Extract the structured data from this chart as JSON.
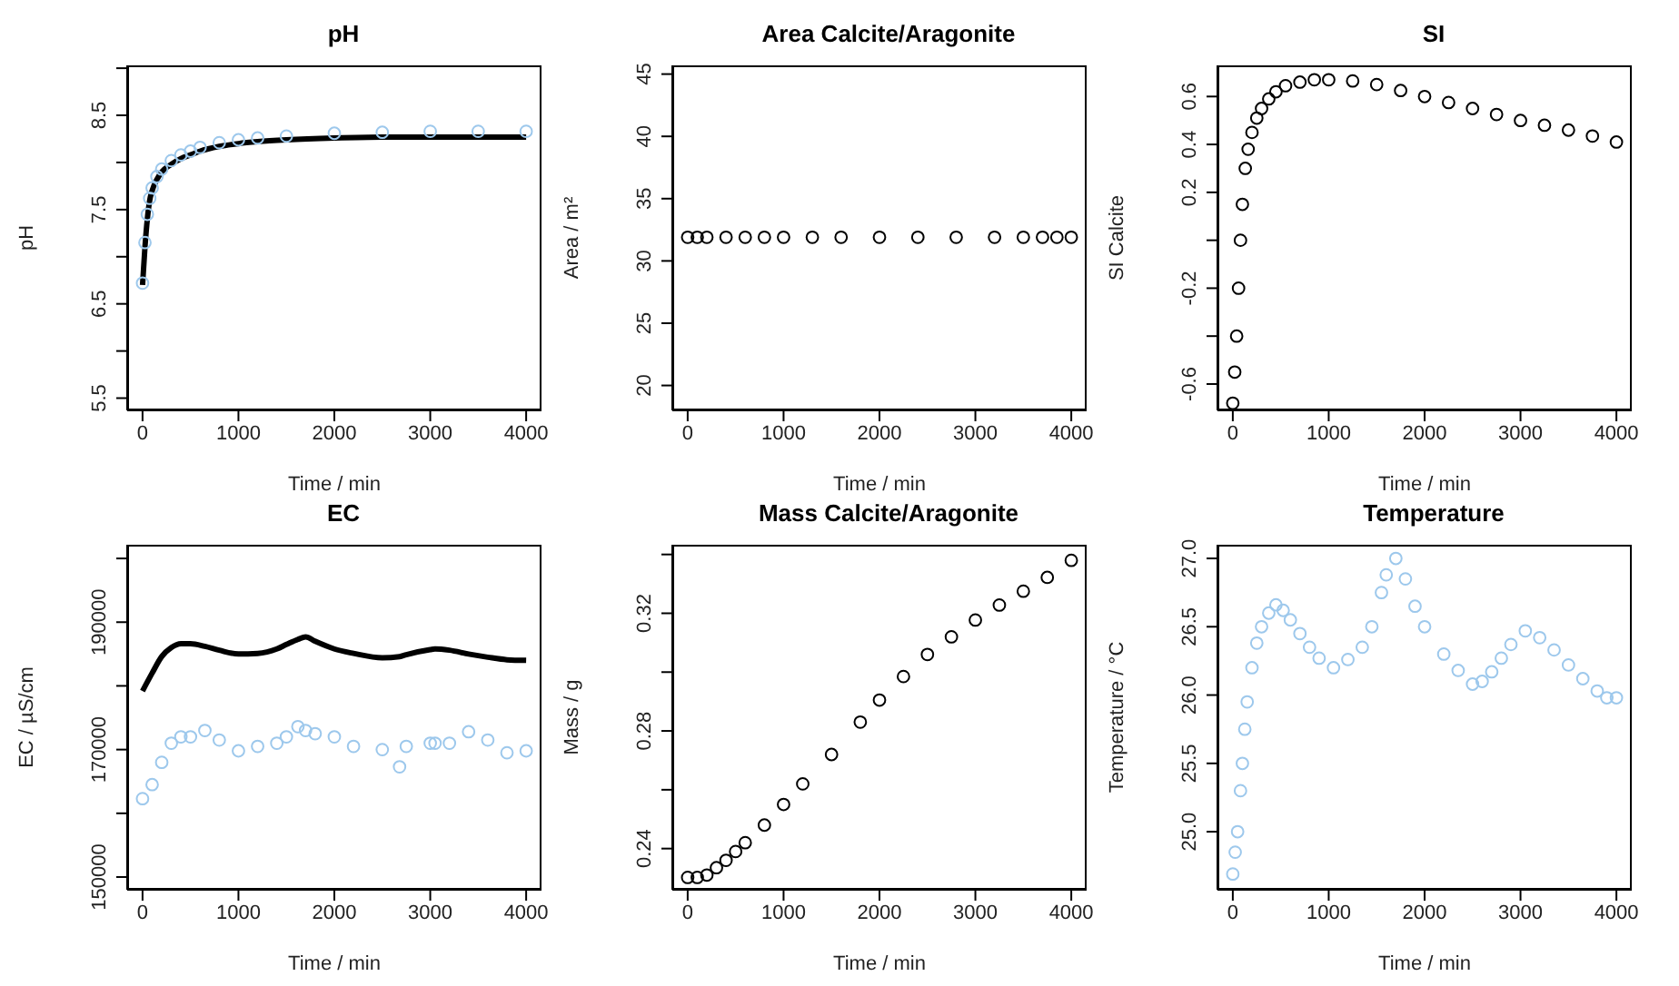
{
  "chart_data": [
    {
      "type": "scatter",
      "title": "pH",
      "xlabel": "Time / min",
      "ylabel": "pH",
      "xlim": [
        -160,
        4160
      ],
      "xticks": [
        0,
        1000,
        2000,
        3000,
        4000
      ],
      "ylim": [
        5.37,
        9.03
      ],
      "yticks": [
        5.5,
        {
          "value": 6,
          "label": null
        },
        6.5,
        {
          "value": 7,
          "label": null
        },
        7.5,
        {
          "value": 8,
          "label": null
        },
        8.5,
        {
          "value": 9,
          "label": null
        }
      ],
      "x": [
        0,
        25,
        50,
        75,
        100,
        150,
        200,
        300,
        400,
        500,
        600,
        800,
        1000,
        1200,
        1500,
        2000,
        2500,
        3000,
        3500,
        4000
      ],
      "series": [
        {
          "type": "scatter",
          "marker": "circle",
          "color": "#9dc8ec",
          "values": [
            6.72,
            7.15,
            7.45,
            7.62,
            7.73,
            7.85,
            7.93,
            8.02,
            8.08,
            8.12,
            8.16,
            8.21,
            8.24,
            8.26,
            8.28,
            8.31,
            8.32,
            8.33,
            8.33,
            8.33
          ]
        },
        {
          "type": "line",
          "line_style": "solid",
          "color": "#000000",
          "values": [
            6.7,
            7.1,
            7.4,
            7.6,
            7.7,
            7.82,
            7.9,
            7.98,
            8.04,
            8.08,
            8.12,
            8.17,
            8.2,
            8.22,
            8.24,
            8.26,
            8.27,
            8.27,
            8.27,
            8.27
          ]
        }
      ]
    },
    {
      "type": "scatter",
      "title": "Area Calcite/Aragonite",
      "xlabel": "Time / min",
      "ylabel": "Area / m²",
      "xlim": [
        -160,
        4160
      ],
      "xticks": [
        0,
        1000,
        2000,
        3000,
        4000
      ],
      "ylim": [
        18,
        45.7
      ],
      "yticks": [
        20,
        25,
        30,
        35,
        40,
        45
      ],
      "x": [
        0,
        100,
        200,
        400,
        600,
        800,
        1000,
        1300,
        1600,
        2000,
        2400,
        2800,
        3200,
        3500,
        3700,
        3850,
        4000
      ],
      "series": [
        {
          "type": "scatter",
          "marker": "circle",
          "color": "#000000",
          "values": [
            31.9,
            31.9,
            31.9,
            31.9,
            31.9,
            31.9,
            31.9,
            31.9,
            31.9,
            31.9,
            31.9,
            31.9,
            31.9,
            31.9,
            31.9,
            31.9,
            31.9
          ]
        }
      ]
    },
    {
      "type": "scatter",
      "title": "SI",
      "xlabel": "Time / min",
      "ylabel": "SI Calcite",
      "xlim": [
        -160,
        4160
      ],
      "xticks": [
        0,
        1000,
        2000,
        3000,
        4000
      ],
      "ylim": [
        -0.71,
        0.73
      ],
      "yticks": [
        -0.6,
        {
          "value": -0.4,
          "label": null
        },
        -0.2,
        {
          "value": 0,
          "label": null
        },
        0.2,
        0.4,
        0.6
      ],
      "x": [
        0,
        20,
        40,
        60,
        80,
        100,
        130,
        160,
        200,
        250,
        300,
        375,
        450,
        550,
        700,
        850,
        1000,
        1250,
        1500,
        1750,
        2000,
        2250,
        2500,
        2750,
        3000,
        3250,
        3500,
        3750,
        4000
      ],
      "series": [
        {
          "type": "scatter",
          "marker": "circle",
          "color": "#000000",
          "values": [
            -0.68,
            -0.55,
            -0.4,
            -0.2,
            0.0,
            0.15,
            0.3,
            0.38,
            0.45,
            0.51,
            0.55,
            0.59,
            0.62,
            0.645,
            0.66,
            0.67,
            0.67,
            0.665,
            0.65,
            0.625,
            0.6,
            0.575,
            0.55,
            0.525,
            0.5,
            0.48,
            0.46,
            0.435,
            0.41
          ]
        }
      ]
    },
    {
      "type": "scatter",
      "title": "EC",
      "xlabel": "Time / min",
      "ylabel": "EC / µS/cm",
      "xlim": [
        -160,
        4160
      ],
      "xticks": [
        0,
        1000,
        2000,
        3000,
        4000
      ],
      "ylim": [
        148000,
        202150
      ],
      "yticks": [
        150000,
        {
          "value": 160000,
          "label": null
        },
        170000,
        {
          "value": 180000,
          "label": null
        },
        190000,
        {
          "value": 200000,
          "label": null
        }
      ],
      "x": [
        0,
        100,
        200,
        300,
        400,
        500,
        650,
        800,
        1000,
        1200,
        1400,
        1500,
        1620,
        1700,
        1800,
        2000,
        2200,
        2500,
        2680,
        2750,
        3000,
        3050,
        3200,
        3400,
        3600,
        3800,
        4000
      ],
      "series": [
        {
          "type": "scatter",
          "marker": "circle",
          "color": "#9dc8ec",
          "values": [
            162300,
            164500,
            168000,
            171000,
            172000,
            172000,
            173000,
            171500,
            169800,
            170500,
            171000,
            172000,
            173600,
            173000,
            172500,
            172000,
            170500,
            170000,
            167300,
            170500,
            171000,
            171000,
            171000,
            172800,
            171500,
            169500,
            169800
          ]
        },
        {
          "type": "line",
          "line_style": "solid",
          "color": "#000000",
          "values": [
            179200,
            182000,
            184600,
            186000,
            186600,
            186600,
            186200,
            185600,
            185000,
            185100,
            185800,
            186500,
            187300,
            187700,
            187000,
            185800,
            185100,
            184400,
            184600,
            184900,
            185700,
            185800,
            185600,
            185000,
            184500,
            184100,
            184000
          ]
        }
      ]
    },
    {
      "type": "scatter",
      "title": "Mass Calcite/Aragonite",
      "xlabel": "Time / min",
      "ylabel": "Mass / g",
      "xlim": [
        -160,
        4160
      ],
      "xticks": [
        0,
        1000,
        2000,
        3000,
        4000
      ],
      "ylim": [
        0.226,
        0.3433
      ],
      "yticks": [
        0.24,
        {
          "value": 0.26,
          "label": null
        },
        0.28,
        {
          "value": 0.3,
          "label": null
        },
        0.32,
        {
          "value": 0.34,
          "label": null
        }
      ],
      "x": [
        0,
        100,
        200,
        300,
        400,
        500,
        600,
        800,
        1000,
        1200,
        1500,
        1800,
        2000,
        2250,
        2500,
        2750,
        3000,
        3250,
        3500,
        3750,
        4000
      ],
      "series": [
        {
          "type": "scatter",
          "marker": "circle",
          "color": "#000000",
          "values": [
            0.2302,
            0.2302,
            0.231,
            0.2335,
            0.236,
            0.239,
            0.242,
            0.248,
            0.255,
            0.262,
            0.272,
            0.283,
            0.2905,
            0.2985,
            0.306,
            0.312,
            0.3177,
            0.3228,
            0.3275,
            0.3322,
            0.338
          ]
        }
      ]
    },
    {
      "type": "scatter",
      "title": "Temperature",
      "xlabel": "Time / min",
      "ylabel": "Temperature / °C",
      "xlim": [
        -160,
        4160
      ],
      "xticks": [
        0,
        1000,
        2000,
        3000,
        4000
      ],
      "ylim": [
        24.575,
        27.1
      ],
      "yticks": [
        {
          "value": 25,
          "label": "25.0"
        },
        25.5,
        {
          "value": 26,
          "label": "26.0"
        },
        26.5,
        {
          "value": 27,
          "label": "27.0"
        }
      ],
      "x": [
        0,
        25,
        50,
        80,
        100,
        125,
        150,
        200,
        250,
        300,
        375,
        450,
        525,
        600,
        700,
        800,
        900,
        1050,
        1200,
        1350,
        1450,
        1550,
        1600,
        1700,
        1800,
        1900,
        2000,
        2200,
        2350,
        2500,
        2600,
        2700,
        2800,
        2900,
        3050,
        3200,
        3350,
        3500,
        3650,
        3800,
        3900,
        4000
      ],
      "series": [
        {
          "type": "scatter",
          "marker": "circle",
          "color": "#9dc8ec",
          "values": [
            24.69,
            24.85,
            25.0,
            25.3,
            25.5,
            25.75,
            25.95,
            26.2,
            26.38,
            26.5,
            26.6,
            26.66,
            26.62,
            26.55,
            26.45,
            26.35,
            26.27,
            26.2,
            26.26,
            26.35,
            26.5,
            26.75,
            26.88,
            27.0,
            26.85,
            26.65,
            26.5,
            26.3,
            26.18,
            26.08,
            26.1,
            26.17,
            26.27,
            26.37,
            26.47,
            26.42,
            26.33,
            26.22,
            26.12,
            26.03,
            25.98,
            25.98
          ]
        }
      ]
    }
  ]
}
